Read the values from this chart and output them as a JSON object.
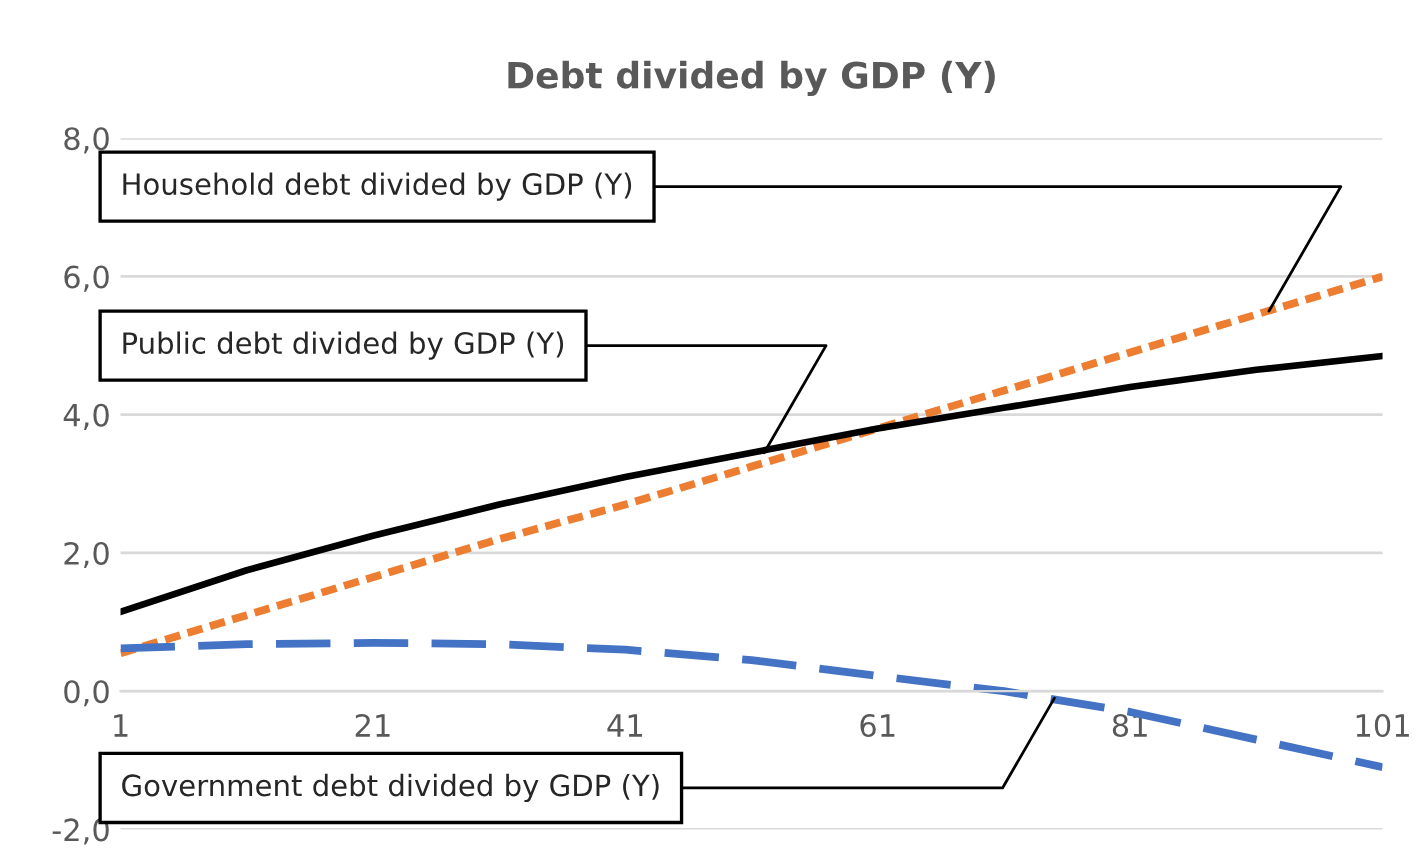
{
  "chart_data": {
    "type": "line",
    "title": "Debt divided by GDP (Y)",
    "x": [
      1,
      11,
      21,
      31,
      41,
      51,
      61,
      71,
      81,
      91,
      101
    ],
    "series": [
      {
        "color": "#ed7d31",
        "line_style": "dotted",
        "values": [
          0.55,
          1.1,
          1.65,
          2.2,
          2.7,
          3.25,
          3.8,
          4.35,
          4.9,
          5.45,
          6.0
        ]
      },
      {
        "color": "#000000",
        "line_style": "solid",
        "values": [
          1.15,
          1.75,
          2.25,
          2.7,
          3.1,
          3.45,
          3.8,
          4.1,
          4.4,
          4.65,
          4.85
        ]
      },
      {
        "color": "#4472c4",
        "line_style": "dashed",
        "values": [
          0.62,
          0.68,
          0.7,
          0.68,
          0.6,
          0.45,
          0.22,
          0.0,
          -0.3,
          -0.7,
          -1.1
        ]
      }
    ],
    "xlim": [
      1,
      101
    ],
    "xticks": [
      1,
      21,
      41,
      61,
      81,
      101
    ],
    "ylim": [
      -2,
      8
    ],
    "yticks": [
      {
        "value": -2,
        "label": "-2,0"
      },
      {
        "value": 0,
        "label": "0,0"
      },
      {
        "value": 2,
        "label": "2,0"
      },
      {
        "value": 4,
        "label": "4,0"
      },
      {
        "value": 6,
        "label": "6,0"
      },
      {
        "value": 8,
        "label": "8,0"
      }
    ],
    "grid": "y",
    "legend": false,
    "annotations": [
      {
        "text": "Household debt divided by GDP (Y)",
        "x": 92,
        "y": 5.5
      },
      {
        "text": "Public debt divided by GDP (Y)",
        "x": 52,
        "y": 3.45
      },
      {
        "text": "Government debt divided by GDP (Y)",
        "x": 75,
        "y": -0.1
      }
    ]
  }
}
